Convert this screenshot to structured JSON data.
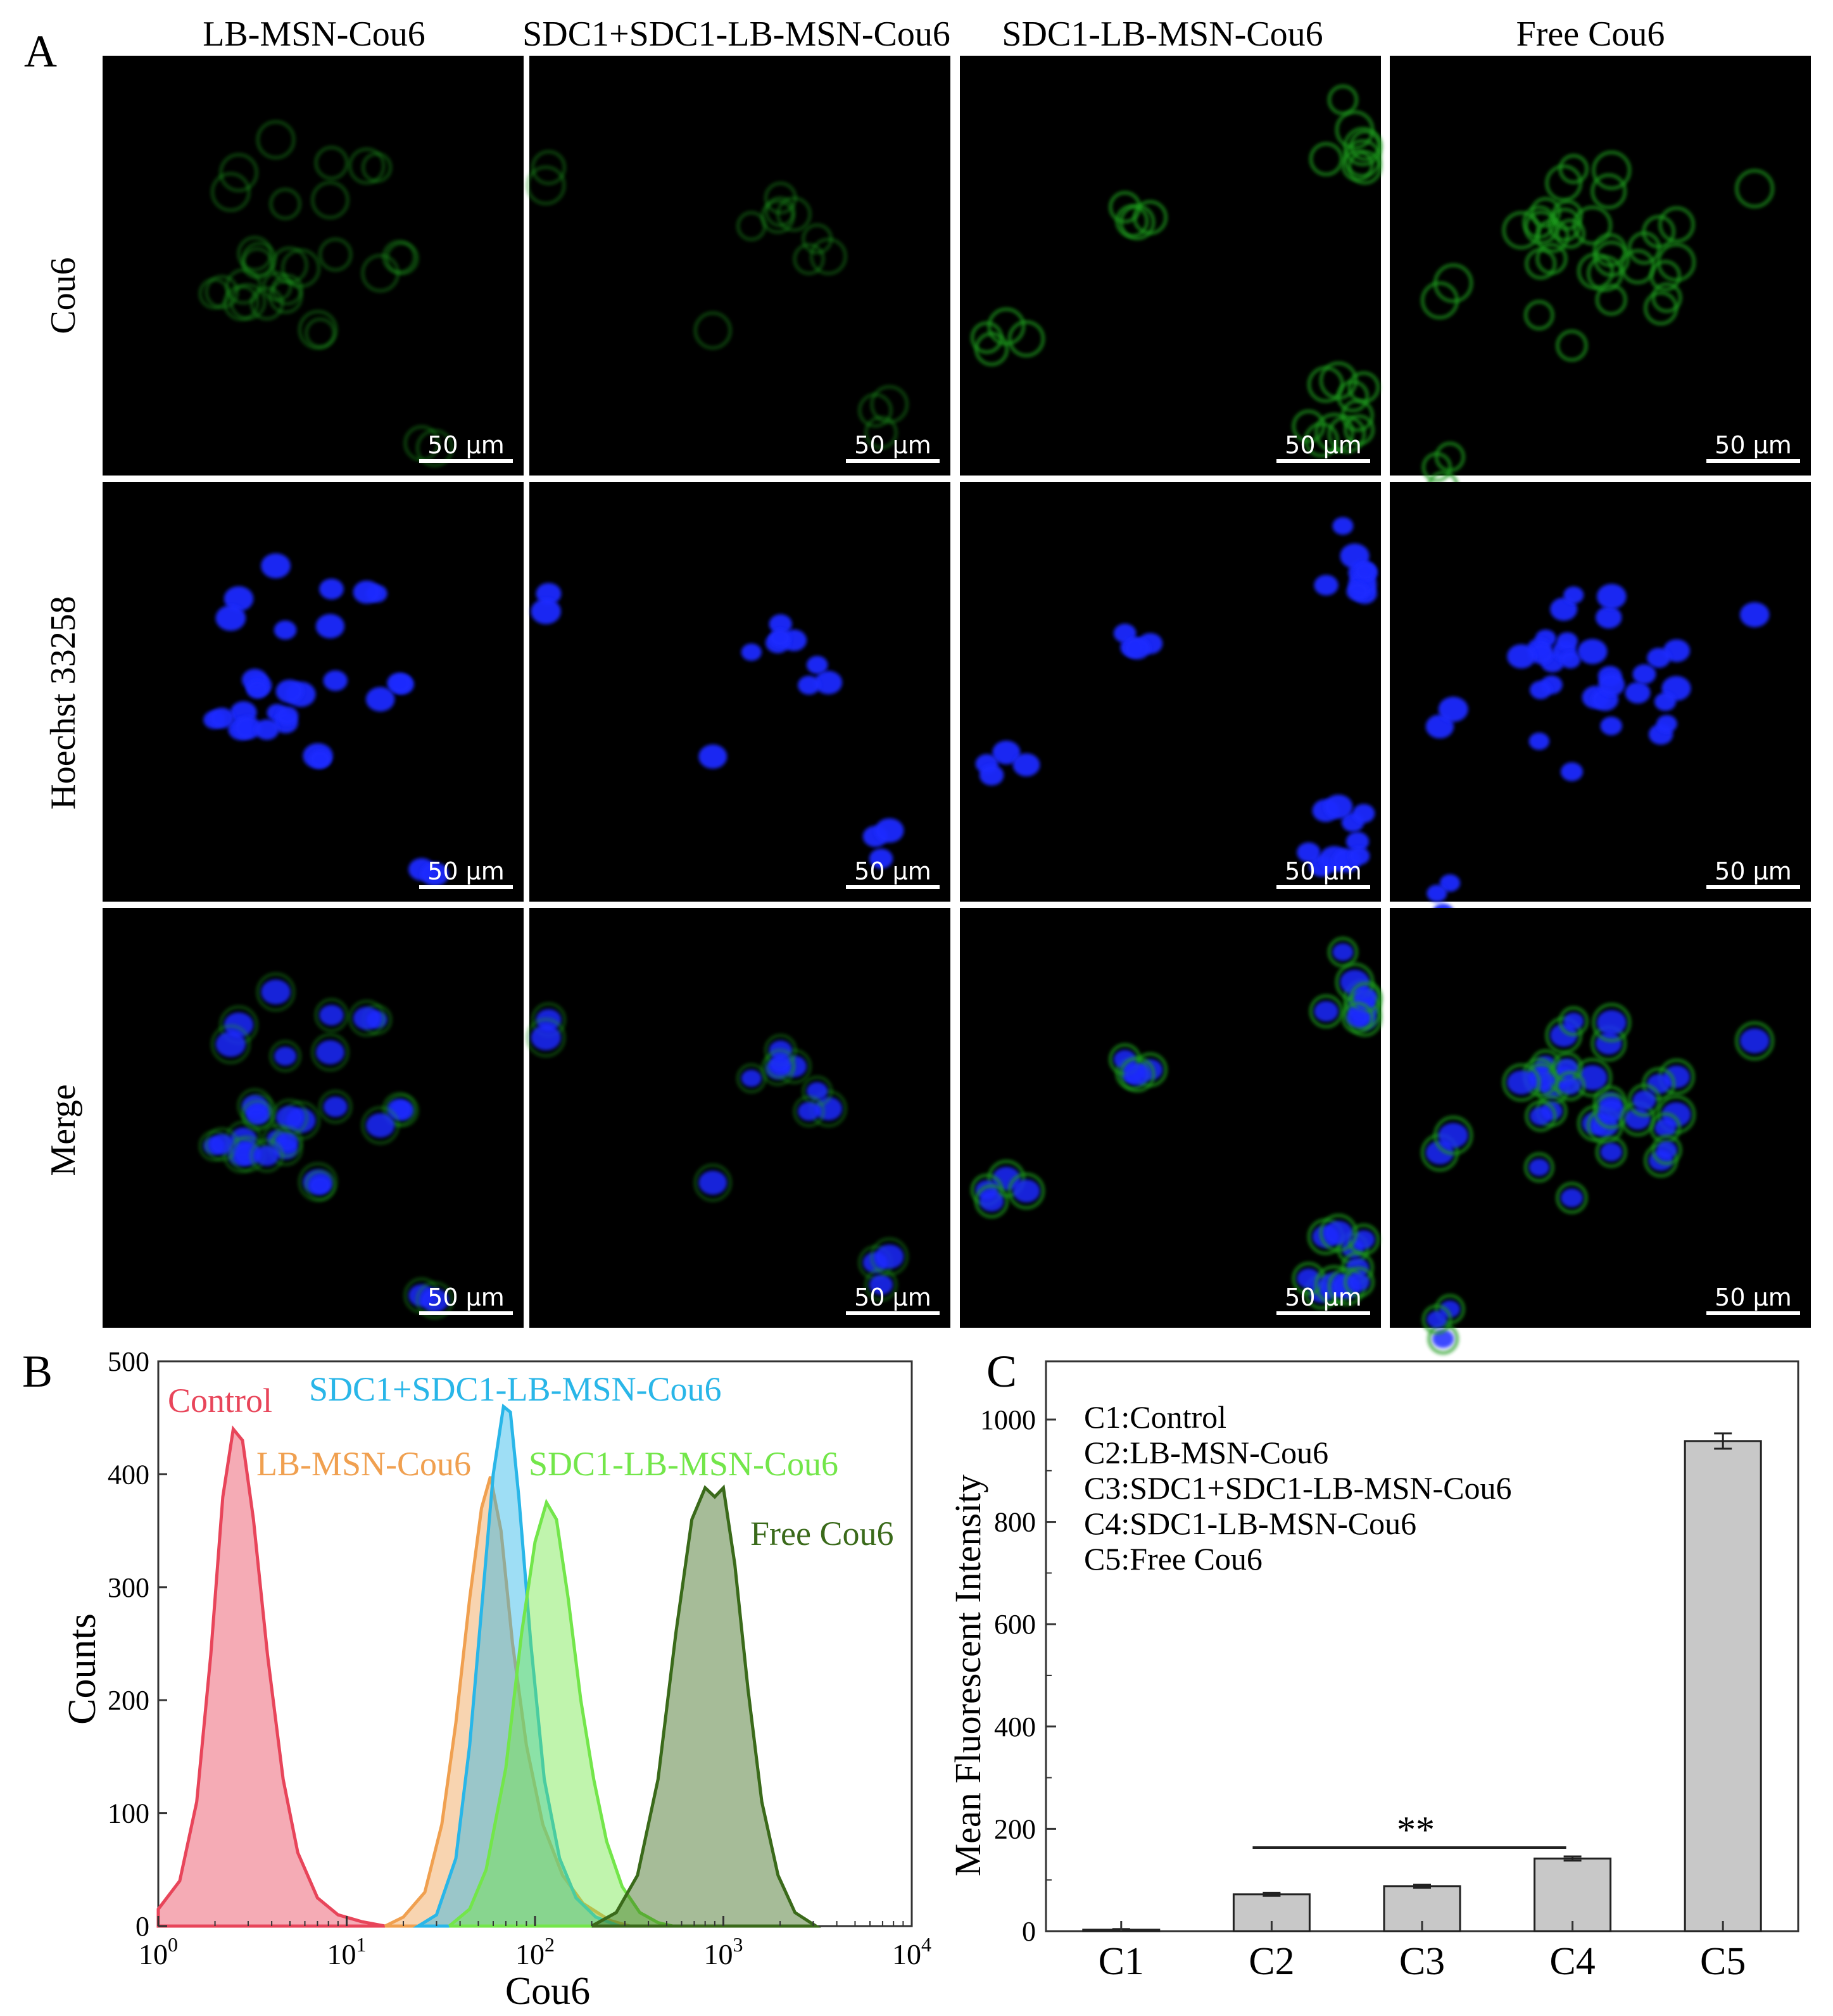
{
  "panels": {
    "a": "A",
    "b": "B",
    "c": "C"
  },
  "microscopy": {
    "columns": [
      "LB-MSN-Cou6",
      "SDC1+SDC1-LB-MSN-Cou6",
      "SDC1-LB-MSN-Cou6",
      "Free Cou6"
    ],
    "rows": [
      "Cou6",
      "Hoechst 33258",
      "Merge"
    ],
    "scale_bar": "50 μm",
    "colors": {
      "cou6": "#1f9a1f",
      "hoechst": "#1a2aff",
      "background": "#000000"
    }
  },
  "chart_data": [
    {
      "type": "area",
      "xlabel": "Cou6",
      "ylabel": "Counts",
      "xscale": "log",
      "xlim": [
        1,
        10000
      ],
      "ylim": [
        0,
        500
      ],
      "yticks": [
        "0",
        "100",
        "200",
        "300",
        "400",
        "500"
      ],
      "xticks": [
        {
          "base": "10",
          "exp": "0",
          "value": 1
        },
        {
          "base": "10",
          "exp": "1",
          "value": 10
        },
        {
          "base": "10",
          "exp": "2",
          "value": 100
        },
        {
          "base": "10",
          "exp": "3",
          "value": 1000
        },
        {
          "base": "10",
          "exp": "4",
          "value": 10000
        }
      ],
      "series": [
        {
          "name": "Control",
          "peak_x": 2.6,
          "peak_y": 445,
          "color": "#e8455a",
          "points": [
            [
              1,
              15
            ],
            [
              1.3,
              40
            ],
            [
              1.6,
              110
            ],
            [
              1.9,
              240
            ],
            [
              2.2,
              380
            ],
            [
              2.5,
              440
            ],
            [
              2.8,
              430
            ],
            [
              3.2,
              360
            ],
            [
              3.8,
              240
            ],
            [
              4.6,
              130
            ],
            [
              5.5,
              65
            ],
            [
              7,
              25
            ],
            [
              9,
              10
            ],
            [
              12,
              4
            ],
            [
              16,
              0
            ]
          ]
        },
        {
          "name": "LB-MSN-Cou6",
          "peak_x": 58,
          "peak_y": 398,
          "color": "#f0a050",
          "points": [
            [
              16,
              0
            ],
            [
              20,
              8
            ],
            [
              26,
              30
            ],
            [
              32,
              90
            ],
            [
              38,
              180
            ],
            [
              45,
              290
            ],
            [
              52,
              370
            ],
            [
              58,
              398
            ],
            [
              66,
              350
            ],
            [
              76,
              250
            ],
            [
              90,
              160
            ],
            [
              110,
              90
            ],
            [
              140,
              45
            ],
            [
              180,
              20
            ],
            [
              250,
              5
            ],
            [
              320,
              0
            ]
          ]
        },
        {
          "name": "SDC1+SDC1-LB-MSN-Cou6",
          "peak_x": 70,
          "peak_y": 462,
          "color": "#29b6e8",
          "points": [
            [
              24,
              0
            ],
            [
              30,
              10
            ],
            [
              38,
              60
            ],
            [
              45,
              160
            ],
            [
              52,
              280
            ],
            [
              60,
              400
            ],
            [
              68,
              460
            ],
            [
              74,
              455
            ],
            [
              82,
              380
            ],
            [
              95,
              250
            ],
            [
              112,
              130
            ],
            [
              135,
              60
            ],
            [
              165,
              25
            ],
            [
              210,
              8
            ],
            [
              280,
              0
            ]
          ]
        },
        {
          "name": "SDC1-LB-MSN-Cou6",
          "peak_x": 120,
          "peak_y": 378,
          "color": "#73e64a",
          "points": [
            [
              35,
              0
            ],
            [
              45,
              15
            ],
            [
              55,
              50
            ],
            [
              70,
              140
            ],
            [
              85,
              260
            ],
            [
              100,
              340
            ],
            [
              115,
              375
            ],
            [
              130,
              360
            ],
            [
              150,
              290
            ],
            [
              175,
              200
            ],
            [
              205,
              130
            ],
            [
              240,
              75
            ],
            [
              290,
              35
            ],
            [
              360,
              12
            ],
            [
              450,
              3
            ],
            [
              540,
              0
            ]
          ]
        },
        {
          "name": "Free Cou6",
          "peak_x": 900,
          "peak_y": 390,
          "color": "#3a6a1a",
          "points": [
            [
              200,
              0
            ],
            [
              270,
              12
            ],
            [
              350,
              45
            ],
            [
              450,
              130
            ],
            [
              560,
              260
            ],
            [
              680,
              360
            ],
            [
              800,
              388
            ],
            [
              900,
              380
            ],
            [
              1000,
              388
            ],
            [
              1150,
              320
            ],
            [
              1350,
              210
            ],
            [
              1600,
              110
            ],
            [
              1950,
              45
            ],
            [
              2400,
              12
            ],
            [
              3100,
              0
            ]
          ]
        }
      ]
    },
    {
      "type": "bar",
      "ylabel": "Mean Fluorescent Intensity",
      "ylim": [
        0,
        1000
      ],
      "yticks": [
        "0",
        "200",
        "400",
        "600",
        "800",
        "1000"
      ],
      "categories": [
        "C1",
        "C2",
        "C3",
        "C4",
        "C5"
      ],
      "values": [
        3,
        72,
        88,
        142,
        958
      ],
      "errors": [
        1,
        3,
        3,
        4,
        15
      ],
      "legend_lines": [
        "C1:Control",
        "C2:LB-MSN-Cou6",
        "C3:SDC1+SDC1-LB-MSN-Cou6",
        "C4:SDC1-LB-MSN-Cou6",
        "C5:Free Cou6"
      ],
      "significance": {
        "label": "**",
        "from": "C2",
        "to": "C4"
      },
      "bar_color": "#c8c8c8"
    }
  ]
}
